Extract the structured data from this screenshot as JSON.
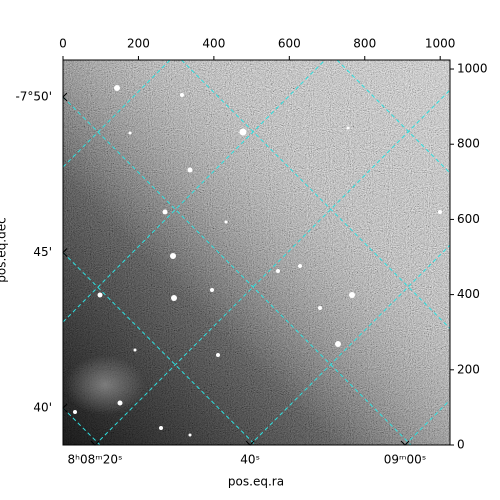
{
  "chart_data": {
    "type": "image",
    "xlabel": "pos.eq.ra",
    "ylabel": "pos.eq.dec",
    "xlim": [
      0,
      1026
    ],
    "xticks": [
      0,
      200,
      400,
      600,
      800,
      1000
    ],
    "ylim": [
      0,
      1024
    ],
    "yticks": [
      0,
      200,
      400,
      600,
      800,
      1000
    ],
    "ra_ticks": [
      {
        "value": 122.0833,
        "label": "8ʰ08ᵐ20ˢ"
      },
      {
        "value": 122.1667,
        "label": "40ˢ"
      },
      {
        "value": 122.25,
        "label": "09ᵐ00ˢ"
      }
    ],
    "dec_ticks": [
      {
        "value": -7.8333,
        "label": "-7°50'"
      },
      {
        "value": -7.75,
        "label": "45'"
      },
      {
        "value": -7.6667,
        "label": "40'"
      }
    ],
    "grid": true,
    "grid_color": "#2ee0e0",
    "colormap": "gray"
  }
}
